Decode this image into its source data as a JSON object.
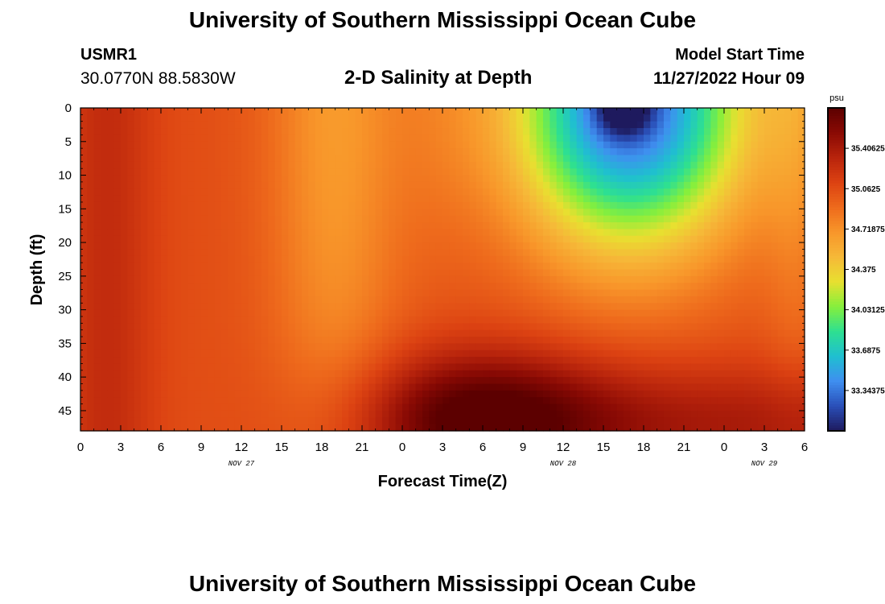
{
  "header": {
    "title": "University of Southern Mississippi Ocean Cube",
    "station_id": "USMR1",
    "coordinates": "30.0770N  88.5830W",
    "subtitle": "2-D Salinity at Depth",
    "model_start_label": "Model Start Time",
    "model_start_value": "11/27/2022 Hour 09"
  },
  "footer": {
    "title": "University of Southern Mississippi Ocean Cube"
  },
  "chart_data": {
    "type": "heatmap",
    "title": "2-D Salinity at Depth",
    "xlabel": "Forecast Time(Z)",
    "ylabel": "Depth (ft)",
    "x_range_hours": [
      0,
      54
    ],
    "xtick_hours": [
      0,
      3,
      6,
      9,
      12,
      15,
      18,
      21,
      24,
      27,
      30,
      33,
      36,
      39,
      42,
      45,
      48,
      51,
      54
    ],
    "xtick_labels": [
      "0",
      "3",
      "6",
      "9",
      "12",
      "15",
      "18",
      "21",
      "0",
      "3",
      "6",
      "9",
      "12",
      "15",
      "18",
      "21",
      "0",
      "3",
      "6"
    ],
    "date_labels": [
      {
        "hour": 12,
        "text": "NOV 27"
      },
      {
        "hour": 36,
        "text": "NOV 28"
      },
      {
        "hour": 51,
        "text": "NOV 29"
      }
    ],
    "y_range_ft": [
      0,
      48
    ],
    "y_inverted": true,
    "ytick_values": [
      0,
      5,
      10,
      15,
      20,
      25,
      30,
      35,
      40,
      45
    ],
    "colorbar": {
      "unit": "psu",
      "range": [
        33.0,
        35.75
      ],
      "tick_values": [
        35.40625,
        35.0625,
        34.71875,
        34.375,
        34.03125,
        33.6875,
        33.34375
      ],
      "tick_labels": [
        "35.40625",
        "35.0625",
        "34.71875",
        "34.375",
        "34.03125",
        "33.6875",
        "33.34375"
      ],
      "colormap": [
        "#1e1a5e",
        "#2a4fb8",
        "#3f8ff0",
        "#1fbfd0",
        "#2ee090",
        "#86ef3c",
        "#e8e030",
        "#f6b838",
        "#f8962a",
        "#ee6a1c",
        "#dc4212",
        "#b8240c",
        "#8a0a04",
        "#5c0000"
      ]
    },
    "summary": {
      "background_salinity_psu": 35.05,
      "surface_low_psu": 33.0,
      "surface_low_location": {
        "hour": 40.5,
        "depth_ft": 1
      },
      "bottom_high_psu": 35.6,
      "bottom_high_location": {
        "hour": 30,
        "depth_ft": 45
      }
    }
  }
}
